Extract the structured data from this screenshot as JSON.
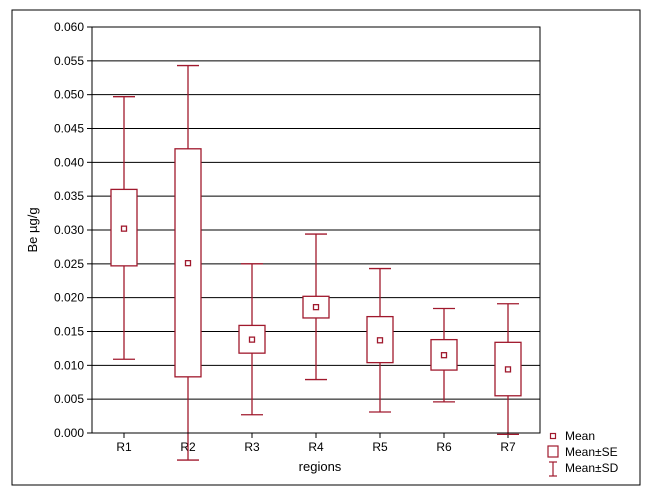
{
  "chart_data": {
    "type": "box",
    "xlabel": "regions",
    "ylabel": "Be µg/g",
    "ylim": [
      0,
      0.06
    ],
    "y_ticks": [
      "0.000",
      "0.005",
      "0.010",
      "0.015",
      "0.020",
      "0.025",
      "0.030",
      "0.035",
      "0.040",
      "0.045",
      "0.050",
      "0.055",
      "0.060"
    ],
    "grid": true,
    "legend_position": "bottom-right",
    "categories": [
      "R1",
      "R2",
      "R3",
      "R4",
      "R5",
      "R6",
      "R7"
    ],
    "mean": [
      0.0302,
      0.0251,
      0.0138,
      0.0186,
      0.0137,
      0.0115,
      0.0094
    ],
    "se_low": [
      0.0247,
      0.0083,
      0.0118,
      0.017,
      0.0104,
      0.0093,
      0.0055
    ],
    "se_high": [
      0.036,
      0.042,
      0.0159,
      0.0202,
      0.0172,
      0.0138,
      0.0134
    ],
    "sd_low": [
      0.0109,
      -0.004,
      0.0027,
      0.0079,
      0.0031,
      0.0046,
      -0.0002
    ],
    "sd_high": [
      0.0497,
      0.0543,
      0.025,
      0.0294,
      0.0243,
      0.0184,
      0.0191
    ],
    "legend": [
      "Mean",
      "Mean±SE",
      "Mean±SD"
    ],
    "colors": {
      "series": "#a0192d",
      "grid": "#000000",
      "frame": "#000000"
    }
  }
}
